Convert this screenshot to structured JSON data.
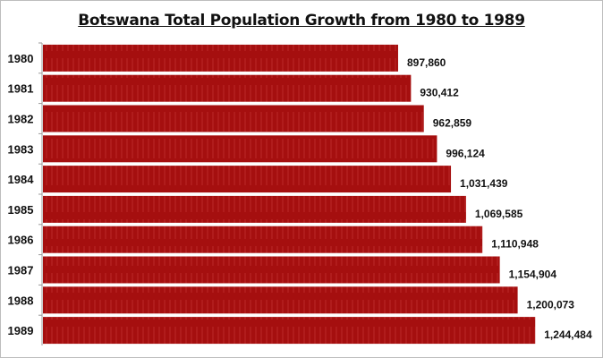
{
  "chart_data": {
    "type": "bar",
    "orientation": "horizontal",
    "title": "Botswana Total Population Growth from 1980 to 1989",
    "categories": [
      "1980",
      "1981",
      "1982",
      "1983",
      "1984",
      "1985",
      "1986",
      "1987",
      "1988",
      "1989"
    ],
    "values": [
      897860,
      930412,
      962859,
      996124,
      1031439,
      1069585,
      1110948,
      1154904,
      1200073,
      1244484
    ],
    "data_labels": [
      "897,860",
      "930,412",
      "962,859",
      "996,124",
      "1,031,439",
      "1,069,585",
      "1,110,948",
      "1,154,904",
      "1,200,073",
      "1,244,484"
    ],
    "xlabel": "",
    "ylabel": "",
    "xlim": [
      0,
      1400000
    ],
    "grid": false,
    "legend": "none",
    "bar_color": "#a50f0f"
  }
}
